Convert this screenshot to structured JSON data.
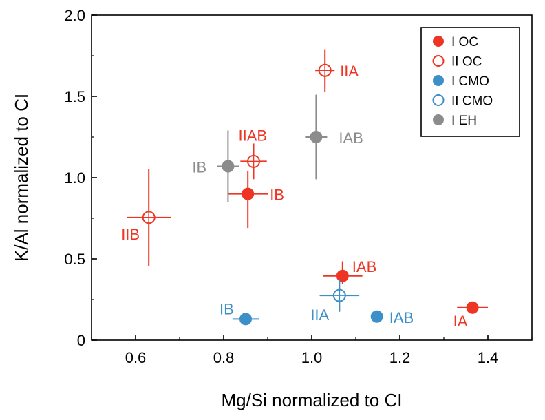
{
  "chart_data": {
    "type": "scatter",
    "title": "",
    "xlabel": "Mg/Si normalized to CI",
    "ylabel": "K/Al normalized to CI",
    "xlim": [
      0.5,
      1.5
    ],
    "ylim": [
      0.0,
      2.0
    ],
    "xticks": [
      "0.6",
      "0.8",
      "1.0",
      "1.2",
      "1.4"
    ],
    "yticks": [
      "0",
      "0.5",
      "1.0",
      "1.5",
      "2.0"
    ],
    "legend_position": "top-right",
    "colors": {
      "oc": "#ee3524",
      "cmo": "#3d8fc7",
      "eh": "#8c8c8c"
    },
    "series": [
      {
        "name": "I OC",
        "color": "#ee3524",
        "filled": true,
        "points": [
          {
            "label": "IB",
            "x": 0.855,
            "y": 0.9,
            "xerr": 0.045,
            "yerr_low": 0.21,
            "yerr_high": 0.14
          },
          {
            "label": "IAB",
            "x": 1.07,
            "y": 0.395,
            "xerr": 0.045,
            "yerr_low": 0.05,
            "yerr_high": 0.09
          },
          {
            "label": "IA",
            "x": 1.365,
            "y": 0.2,
            "xerr": 0.035,
            "yerr_low": 0.03,
            "yerr_high": 0.03
          }
        ]
      },
      {
        "name": "II OC",
        "color": "#ee3524",
        "filled": false,
        "points": [
          {
            "label": "IIB",
            "x": 0.63,
            "y": 0.755,
            "xerr": 0.05,
            "yerr_low": 0.3,
            "yerr_high": 0.3
          },
          {
            "label": "IIAB",
            "x": 0.868,
            "y": 1.1,
            "xerr": 0.03,
            "yerr_low": 0.11,
            "yerr_high": 0.11
          },
          {
            "label": "IIA",
            "x": 1.03,
            "y": 1.66,
            "xerr": 0.022,
            "yerr_low": 0.13,
            "yerr_high": 0.13
          }
        ]
      },
      {
        "name": "I CMO",
        "color": "#3d8fc7",
        "filled": true,
        "points": [
          {
            "label": "IB",
            "x": 0.85,
            "y": 0.13,
            "xerr": 0.03,
            "yerr_low": 0.0,
            "yerr_high": 0.0
          },
          {
            "label": "IAB",
            "x": 1.148,
            "y": 0.145,
            "xerr": 0.0,
            "yerr_low": 0.0,
            "yerr_high": 0.0
          }
        ]
      },
      {
        "name": "II CMO",
        "color": "#3d8fc7",
        "filled": false,
        "points": [
          {
            "label": "IIA",
            "x": 1.063,
            "y": 0.275,
            "xerr": 0.045,
            "yerr_low": 0.1,
            "yerr_high": 0.1
          }
        ]
      },
      {
        "name": "I EH",
        "color": "#8c8c8c",
        "filled": true,
        "points": [
          {
            "label": "IB",
            "x": 0.81,
            "y": 1.07,
            "xerr": 0.025,
            "yerr_low": 0.22,
            "yerr_high": 0.22
          },
          {
            "label": "IAB",
            "x": 1.01,
            "y": 1.25,
            "xerr": 0.025,
            "yerr_low": 0.26,
            "yerr_high": 0.26
          }
        ]
      }
    ]
  }
}
